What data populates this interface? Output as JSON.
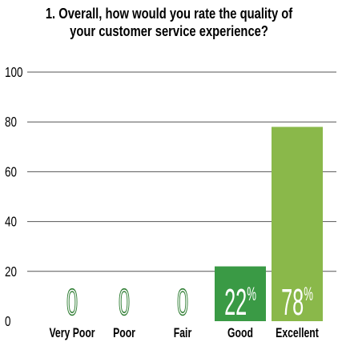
{
  "chart_data": {
    "type": "bar",
    "title": "1. Overall, how would you rate the quality of\nyour customer service experience?",
    "xlabel": "",
    "ylabel": "",
    "categories": [
      "Very Poor",
      "Poor",
      "Fair",
      "Good",
      "Excellent"
    ],
    "values": [
      0,
      0,
      0,
      22,
      78
    ],
    "value_labels": [
      "0",
      "0",
      "0",
      "22%",
      "78%"
    ],
    "ylim": [
      0,
      100
    ],
    "yticks": [
      "0",
      "20",
      "40",
      "60",
      "80",
      "100"
    ],
    "ytick_values": [
      0,
      20,
      40,
      60,
      80,
      100
    ],
    "grid": true,
    "legend": "none",
    "colors": {
      "good_bar": "#3a9a45",
      "excellent_bar": "#8ab84a",
      "grid": "#555555",
      "text": "#000000",
      "zero_label_stroke": "#2e7d32"
    }
  }
}
